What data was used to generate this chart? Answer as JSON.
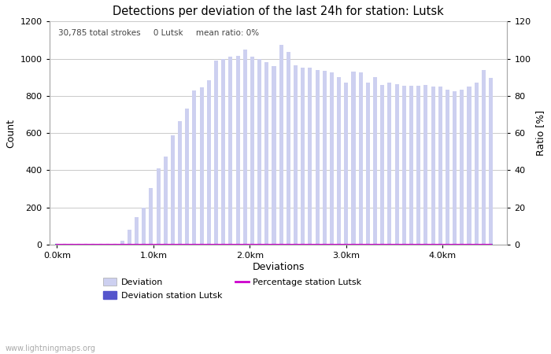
{
  "title": "Detections per deviation of the last 24h for station: Lutsk",
  "annotation": "30,785 total strokes     0 Lutsk     mean ratio: 0%",
  "xlabel": "Deviations",
  "ylabel_left": "Count",
  "ylabel_right": "Ratio [%]",
  "ylim_left": [
    0,
    1200
  ],
  "ylim_right": [
    0,
    120
  ],
  "yticks_left": [
    0,
    200,
    400,
    600,
    800,
    1000,
    1200
  ],
  "yticks_right": [
    0,
    20,
    40,
    60,
    80,
    100,
    120
  ],
  "xtick_positions": [
    0.0,
    1.0,
    2.0,
    3.0,
    4.0
  ],
  "xtick_labels": [
    "0.0km",
    "1.0km",
    "2.0km",
    "3.0km",
    "4.0km"
  ],
  "bar_color_light": "#cdd0f0",
  "bar_color_dark": "#5555cc",
  "line_color": "#cc00cc",
  "background_color": "#ffffff",
  "grid_color": "#c0c0c0",
  "watermark": "www.lightningmaps.org",
  "legend_entries": [
    "Deviation",
    "Deviation station Lutsk",
    "Percentage station Lutsk"
  ],
  "bar_values": [
    5,
    0,
    0,
    0,
    0,
    0,
    0,
    0,
    0,
    20,
    80,
    150,
    200,
    305,
    410,
    475,
    590,
    665,
    730,
    830,
    845,
    885,
    990,
    1000,
    1010,
    1015,
    1050,
    1010,
    1000,
    980,
    960,
    1075,
    1035,
    965,
    950,
    950,
    940,
    935,
    925,
    900,
    870,
    930,
    925,
    870,
    900,
    860,
    870,
    865,
    855,
    855,
    855,
    860,
    850,
    850,
    835,
    825,
    835,
    850,
    870,
    940,
    895
  ],
  "station_bar_values": [
    0,
    0,
    0,
    0,
    0,
    0,
    0,
    0,
    0,
    0,
    0,
    0,
    0,
    0,
    0,
    0,
    0,
    0,
    0,
    0,
    0,
    0,
    0,
    0,
    0,
    0,
    0,
    0,
    0,
    0,
    0,
    0,
    0,
    0,
    0,
    0,
    0,
    0,
    0,
    0,
    0,
    0,
    0,
    0,
    0,
    0,
    0,
    0,
    0,
    0,
    0,
    0,
    0,
    0,
    0,
    0,
    0,
    0,
    0,
    0,
    0
  ],
  "percentage_values": [
    0,
    0,
    0,
    0,
    0,
    0,
    0,
    0,
    0,
    0,
    0,
    0,
    0,
    0,
    0,
    0,
    0,
    0,
    0,
    0,
    0,
    0,
    0,
    0,
    0,
    0,
    0,
    0,
    0,
    0,
    0,
    0,
    0,
    0,
    0,
    0,
    0,
    0,
    0,
    0,
    0,
    0,
    0,
    0,
    0,
    0,
    0,
    0,
    0,
    0,
    0,
    0,
    0,
    0,
    0,
    0,
    0,
    0,
    0,
    0,
    0
  ],
  "n_bars": 61,
  "x_km_per_bar": 0.075,
  "xlim": [
    -0.08,
    4.67
  ],
  "figsize": [
    7.0,
    4.5
  ],
  "dpi": 100
}
